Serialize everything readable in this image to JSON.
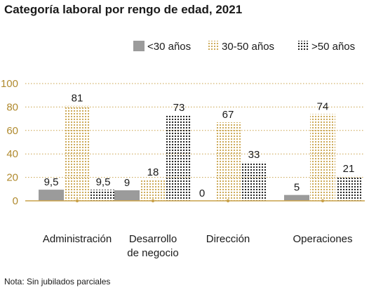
{
  "title": "Categoría laboral por rengo de edad, 2021",
  "note": "Nota: Sin jubilados parciales",
  "chart_data": {
    "type": "bar",
    "title": "Categoría laboral por rengo de edad, 2021",
    "categories": [
      [
        "Administración"
      ],
      [
        "Desarrollo",
        "de negocio"
      ],
      [
        "Dirección"
      ],
      [
        "Operaciones"
      ]
    ],
    "series": [
      {
        "name": "<30 años",
        "values": [
          9.5,
          9,
          0,
          5
        ],
        "labels": [
          "9,5",
          "9",
          "0",
          "5"
        ],
        "color": "#9b9b9b",
        "pattern": "solid"
      },
      {
        "name": "30-50 años",
        "values": [
          81,
          18,
          67,
          74
        ],
        "labels": [
          "81",
          "18",
          "67",
          "74"
        ],
        "color": "#c9a24a",
        "pattern": "dots"
      },
      {
        "name": ">50 años",
        "values": [
          9.5,
          73,
          33,
          21
        ],
        "labels": [
          "9,5",
          "73",
          "33",
          "21"
        ],
        "color": "#1a1a1a",
        "pattern": "dots"
      }
    ],
    "yticks": [
      "0",
      "20",
      "40",
      "60",
      "80",
      "100"
    ],
    "ylim": [
      0,
      100
    ],
    "grid": true,
    "legend": "top-right",
    "colors": {
      "axis": "#c9a24a",
      "grid": "#c9a24a",
      "tick_text": "#b08a2e"
    }
  }
}
